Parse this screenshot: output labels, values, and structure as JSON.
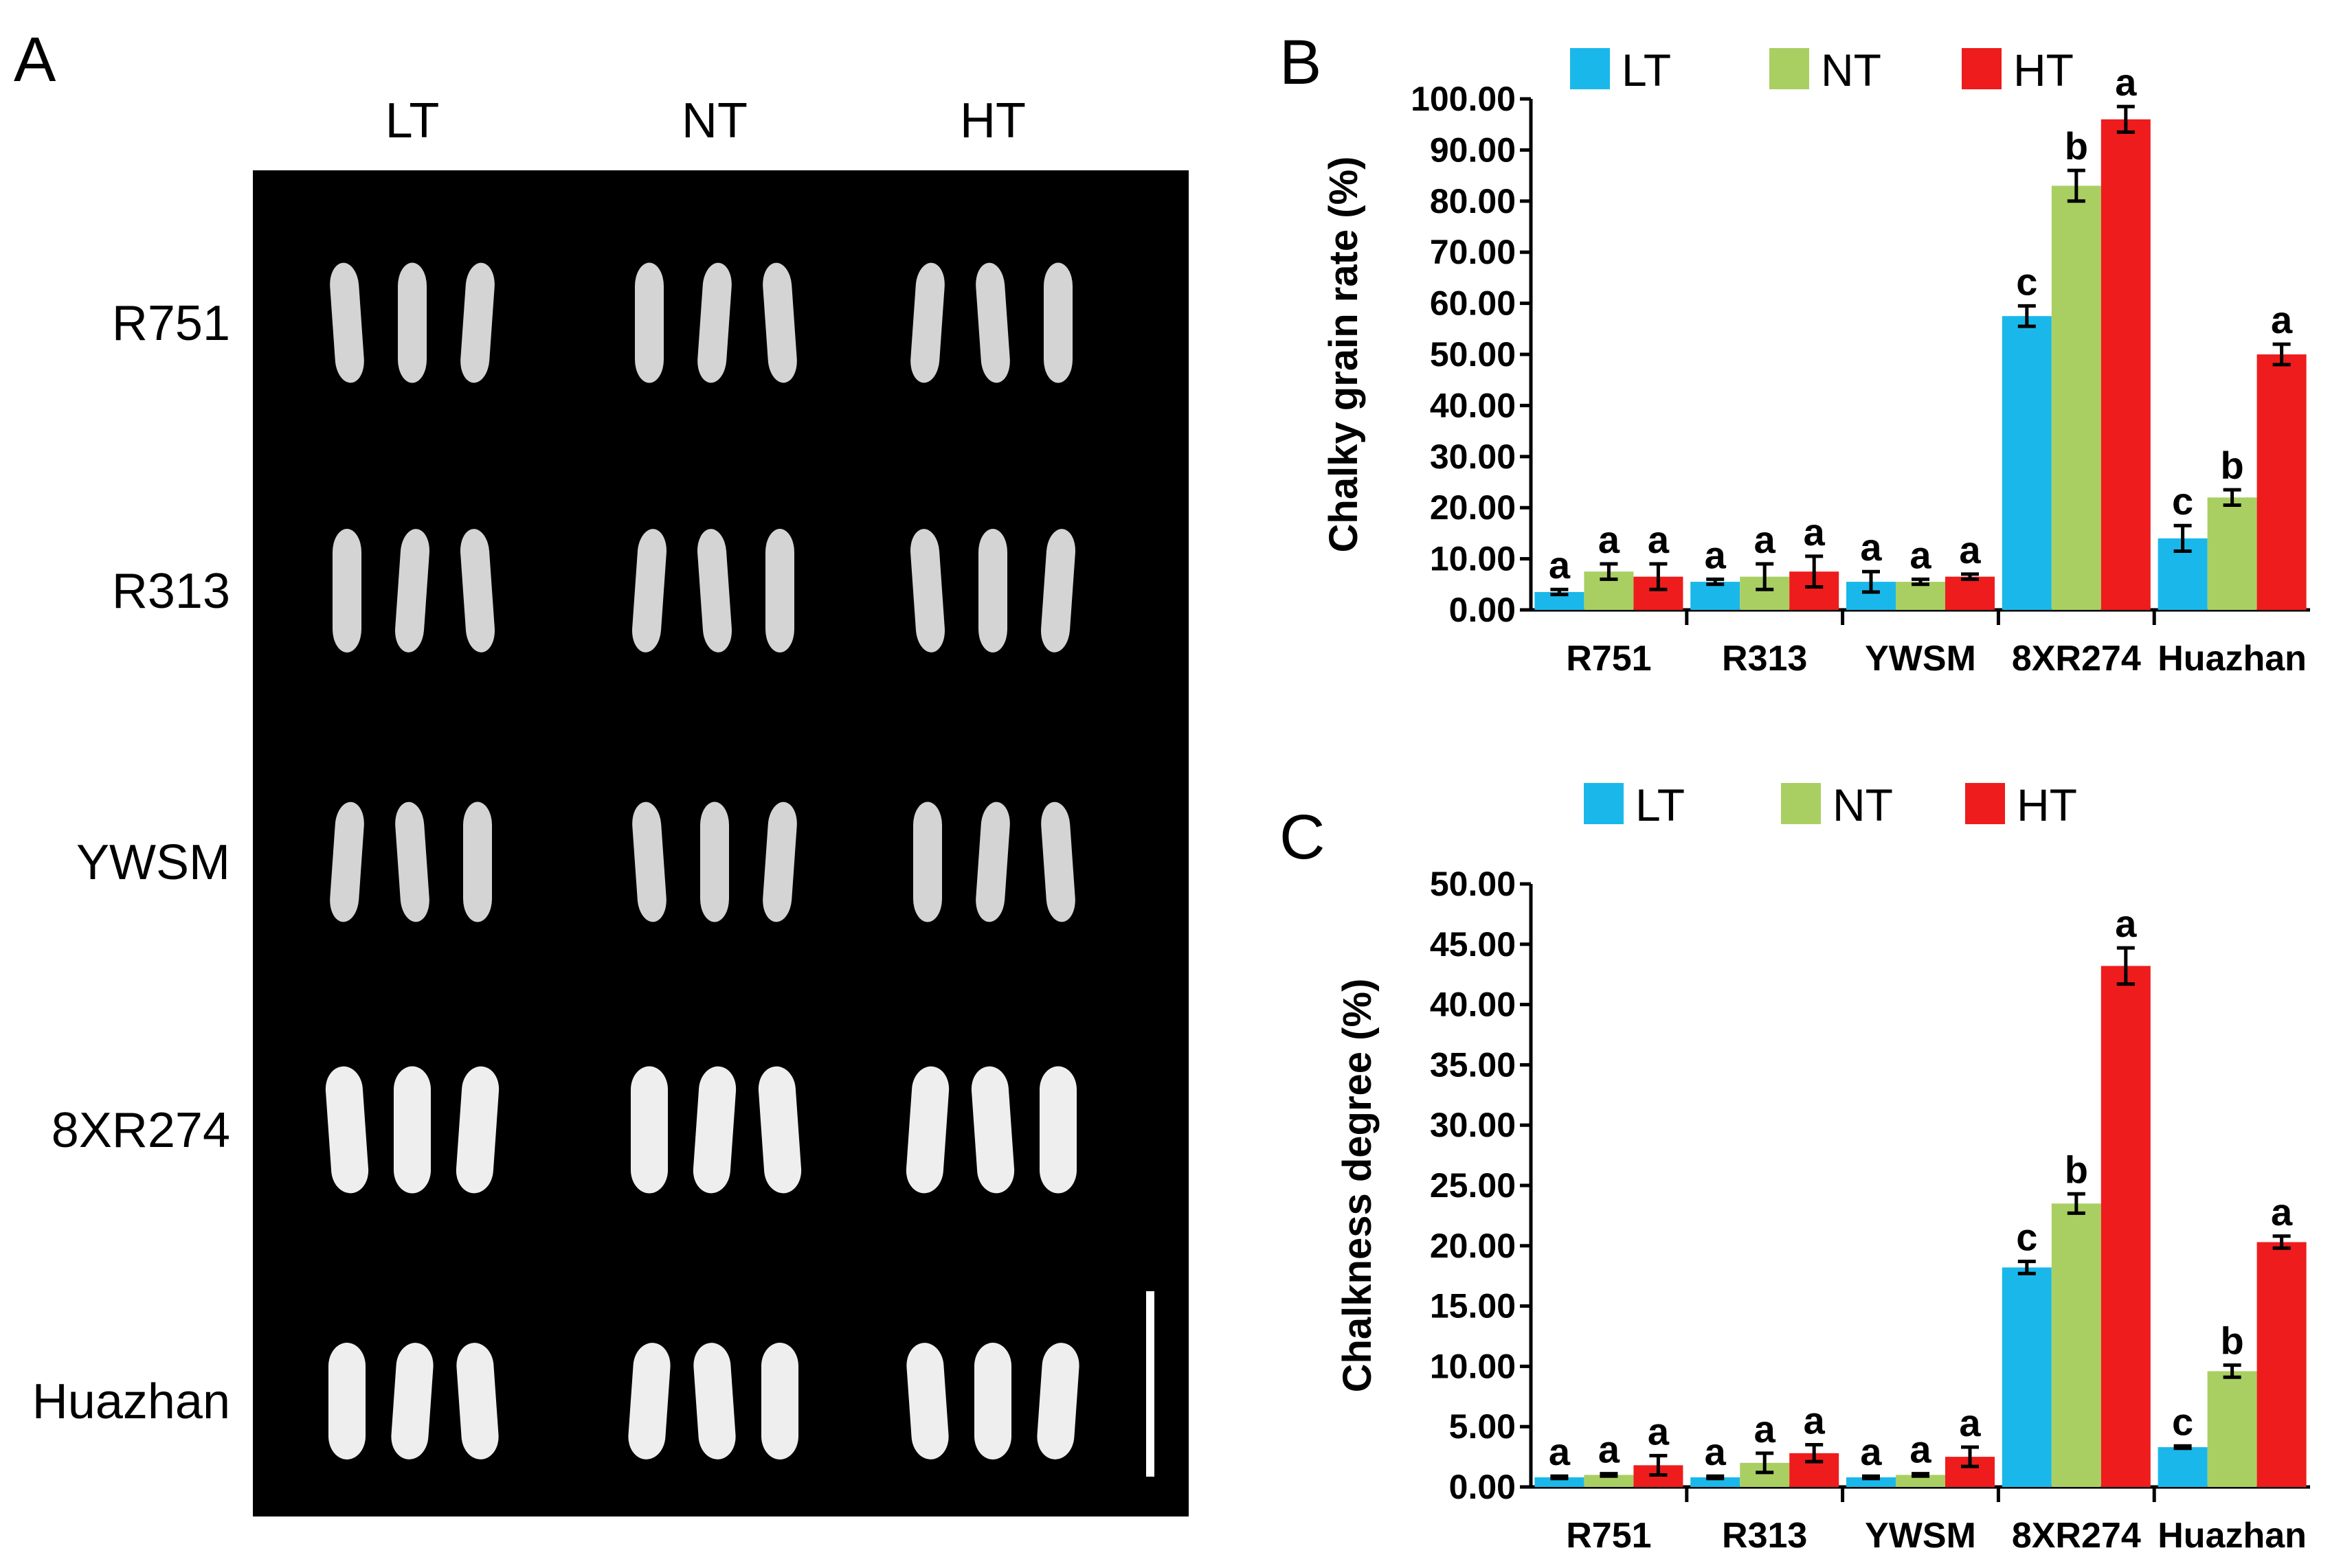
{
  "panel_a": {
    "label": "A",
    "columns": [
      "LT",
      "NT",
      "HT"
    ],
    "rows": [
      "R751",
      "R313",
      "YWSM",
      "8XR274",
      "Huazhan"
    ]
  },
  "colors": {
    "LT": "#1ab8ea",
    "NT": "#a9cf63",
    "HT": "#ee1c1c"
  },
  "chart_data": [
    {
      "type": "bar",
      "panel_label": "B",
      "ylabel": "Chalky grain rate (%)",
      "ylim": [
        0,
        100
      ],
      "yticks": [
        "0.00",
        "10.00",
        "20.00",
        "30.00",
        "40.00",
        "50.00",
        "60.00",
        "70.00",
        "80.00",
        "90.00",
        "100.00"
      ],
      "categories": [
        "R751",
        "R313",
        "YWSM",
        "8XR274",
        "Huazhan"
      ],
      "series": [
        {
          "name": "LT",
          "values": [
            3.5,
            5.5,
            5.5,
            57.5,
            14.0
          ],
          "errors": [
            0.5,
            0.5,
            2.0,
            2.0,
            2.5
          ],
          "letters": [
            "a",
            "a",
            "a",
            "c",
            "c"
          ]
        },
        {
          "name": "NT",
          "values": [
            7.5,
            6.5,
            5.5,
            83.0,
            22.0
          ],
          "errors": [
            1.5,
            2.5,
            0.5,
            3.0,
            1.5
          ],
          "letters": [
            "a",
            "a",
            "a",
            "b",
            "b"
          ]
        },
        {
          "name": "HT",
          "values": [
            6.5,
            7.5,
            6.5,
            96.0,
            50.0
          ],
          "errors": [
            2.5,
            3.0,
            0.5,
            2.5,
            2.0
          ],
          "letters": [
            "a",
            "a",
            "a",
            "a",
            "a"
          ]
        }
      ]
    },
    {
      "type": "bar",
      "panel_label": "C",
      "ylabel": "Chalkness degree (%)",
      "ylim": [
        0,
        50
      ],
      "yticks": [
        "0.00",
        "5.00",
        "10.00",
        "15.00",
        "20.00",
        "25.00",
        "30.00",
        "35.00",
        "40.00",
        "45.00",
        "50.00"
      ],
      "categories": [
        "R751",
        "R313",
        "YWSM",
        "8XR274",
        "Huazhan"
      ],
      "series": [
        {
          "name": "LT",
          "values": [
            0.8,
            0.8,
            0.8,
            18.2,
            3.3
          ],
          "errors": [
            0.1,
            0.1,
            0.1,
            0.5,
            0.1
          ],
          "letters": [
            "a",
            "a",
            "a",
            "c",
            "c"
          ]
        },
        {
          "name": "NT",
          "values": [
            1.0,
            2.0,
            1.0,
            23.5,
            9.6
          ],
          "errors": [
            0.1,
            0.8,
            0.1,
            0.8,
            0.5
          ],
          "letters": [
            "a",
            "a",
            "a",
            "b",
            "b"
          ]
        },
        {
          "name": "HT",
          "values": [
            1.8,
            2.8,
            2.5,
            43.2,
            20.3
          ],
          "errors": [
            0.8,
            0.7,
            0.8,
            1.5,
            0.5
          ],
          "letters": [
            "a",
            "a",
            "a",
            "a",
            "a"
          ]
        }
      ]
    }
  ]
}
